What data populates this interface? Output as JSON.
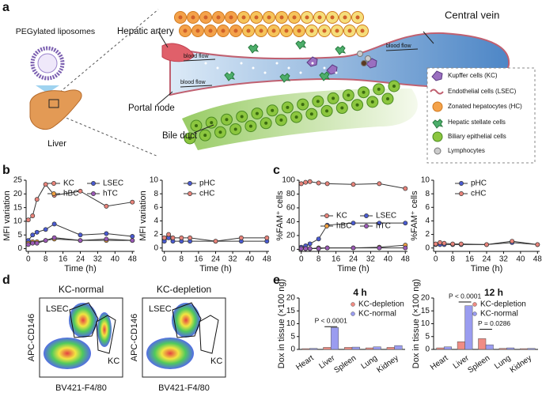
{
  "panel_labels": [
    "a",
    "b",
    "c",
    "d",
    "e"
  ],
  "diagram": {
    "liposome_label": "PEGylated liposomes",
    "organ_label": "Liver",
    "hepatic_artery": "Hepatic artery",
    "central_vein": "Central vein",
    "portal_node": "Portal node",
    "bile_duct": "Bile duct",
    "blood_flow": [
      "blood flow",
      "blood flow",
      "blood flow"
    ],
    "legend": [
      "Kupffer cells (KC)",
      "Endothelial cells (LSEC)",
      "Zonated hepatocytes (HC)",
      "Hepatic stellate cells",
      "Biliary epithelial cells",
      "Lymphocytes"
    ]
  },
  "flow_plots": {
    "titles": [
      "KC-normal",
      "KC-depletion"
    ],
    "gate_labels": [
      "LSEC",
      "KC"
    ],
    "ylabel": "APC-CD146",
    "xlabel": "BV421-F4/80"
  },
  "chart_data": [
    {
      "type": "line",
      "xlabel": "Time (h)",
      "ylabel": "MFI variation",
      "x": [
        0,
        2,
        4,
        8,
        12,
        24,
        36,
        48
      ],
      "xlim": [
        -1,
        49
      ],
      "ylim": [
        -1,
        25
      ],
      "xticks": [
        0,
        8,
        16,
        24,
        32,
        40,
        48
      ],
      "yticks": [
        0,
        5,
        10,
        15,
        20,
        25
      ],
      "series": [
        {
          "name": "KC",
          "color": "#e8837a",
          "values": [
            10.5,
            12,
            18,
            23.5,
            19.5,
            21,
            15.5,
            17
          ]
        },
        {
          "name": "LSEC",
          "color": "#4a5bd1",
          "values": [
            3,
            5,
            6,
            7,
            9,
            5,
            5.5,
            4.5
          ]
        },
        {
          "name": "hBC",
          "color": "#f0a040",
          "values": [
            2,
            2.5,
            2.5,
            3,
            3.5,
            3,
            3,
            3
          ]
        },
        {
          "name": "hTC",
          "color": "#9b59b6",
          "values": [
            1.5,
            2,
            2,
            3,
            4,
            3,
            3.5,
            3
          ]
        }
      ]
    },
    {
      "type": "line",
      "xlabel": "Time (h)",
      "ylabel": "MFI variation",
      "x": [
        0,
        2,
        4,
        8,
        12,
        24,
        36,
        48
      ],
      "xlim": [
        -1,
        49
      ],
      "ylim": [
        -0.5,
        10
      ],
      "xticks": [
        0,
        8,
        16,
        24,
        32,
        40,
        48
      ],
      "yticks": [
        0,
        2,
        4,
        6,
        8,
        10
      ],
      "series": [
        {
          "name": "pHC",
          "color": "#4a5bd1",
          "values": [
            1,
            1.5,
            1,
            1,
            1,
            1,
            1,
            1
          ]
        },
        {
          "name": "cHC",
          "color": "#e8837a",
          "values": [
            1.5,
            2,
            1.5,
            1.5,
            1.5,
            1,
            1.5,
            1.5
          ]
        }
      ]
    },
    {
      "type": "line",
      "xlabel": "Time (h)",
      "ylabel": "%FAM⁺ cells",
      "x": [
        0,
        2,
        4,
        8,
        12,
        24,
        36,
        48
      ],
      "xlim": [
        -1,
        49
      ],
      "ylim": [
        -3,
        100
      ],
      "xticks": [
        0,
        8,
        16,
        24,
        32,
        40,
        48
      ],
      "yticks": [
        0,
        20,
        40,
        60,
        80,
        100
      ],
      "series": [
        {
          "name": "KC",
          "color": "#e8837a",
          "values": [
            95,
            97,
            98,
            96,
            95,
            94,
            95,
            88
          ]
        },
        {
          "name": "LSEC",
          "color": "#4a5bd1",
          "values": [
            3,
            5,
            8,
            15,
            35,
            38,
            38,
            38
          ]
        },
        {
          "name": "hBC",
          "color": "#f0a040",
          "values": [
            1,
            1,
            1,
            2,
            2,
            2,
            3,
            6
          ]
        },
        {
          "name": "hTC",
          "color": "#9b59b6",
          "values": [
            1,
            1,
            1,
            1,
            2,
            2,
            2,
            2
          ]
        }
      ]
    },
    {
      "type": "line",
      "xlabel": "Time (h)",
      "ylabel": "%FAM⁺ cells",
      "x": [
        0,
        2,
        4,
        8,
        12,
        24,
        36,
        48
      ],
      "xlim": [
        -1,
        49
      ],
      "ylim": [
        -0.5,
        10
      ],
      "xticks": [
        0,
        8,
        16,
        24,
        32,
        40,
        48
      ],
      "yticks": [
        0,
        2,
        4,
        6,
        8,
        10
      ],
      "series": [
        {
          "name": "pHC",
          "color": "#4a5bd1",
          "values": [
            0.5,
            0.5,
            0.5,
            0.5,
            0.5,
            0.5,
            0.8,
            0.5
          ]
        },
        {
          "name": "cHC",
          "color": "#e8837a",
          "values": [
            0.6,
            0.8,
            0.7,
            0.6,
            0.6,
            0.5,
            1,
            0.5
          ]
        }
      ]
    },
    {
      "type": "bar",
      "title": "4 h",
      "ylabel": "Dox in tissue (×100 ng)",
      "categories": [
        "Heart",
        "Liver",
        "Spleen",
        "Lung",
        "Kidney"
      ],
      "ylim": [
        0,
        20
      ],
      "yticks": [
        0,
        5,
        10,
        15,
        20
      ],
      "series": [
        {
          "name": "KC-depletion",
          "color": "#f08c84",
          "values": [
            0.3,
            0.8,
            0.8,
            0.6,
            0.8
          ]
        },
        {
          "name": "KC-normal",
          "color": "#9a9cf0",
          "values": [
            0.4,
            8.5,
            0.9,
            1,
            1.5
          ]
        }
      ],
      "annotations": [
        "P < 0.0001"
      ]
    },
    {
      "type": "bar",
      "title": "12 h",
      "ylabel": "Dox in tissue (×100 ng)",
      "categories": [
        "Heart",
        "Liver",
        "Spleen",
        "Lung",
        "Kidney"
      ],
      "ylim": [
        0,
        20
      ],
      "yticks": [
        0,
        5,
        10,
        15,
        20
      ],
      "series": [
        {
          "name": "KC-depletion",
          "color": "#f08c84",
          "values": [
            0.6,
            3,
            4.2,
            0.4,
            0.3
          ]
        },
        {
          "name": "KC-normal",
          "color": "#9a9cf0",
          "values": [
            1,
            17,
            1.8,
            0.6,
            0.4
          ]
        }
      ],
      "annotations": [
        "P < 0.0001",
        "P = 0.0286"
      ]
    }
  ]
}
